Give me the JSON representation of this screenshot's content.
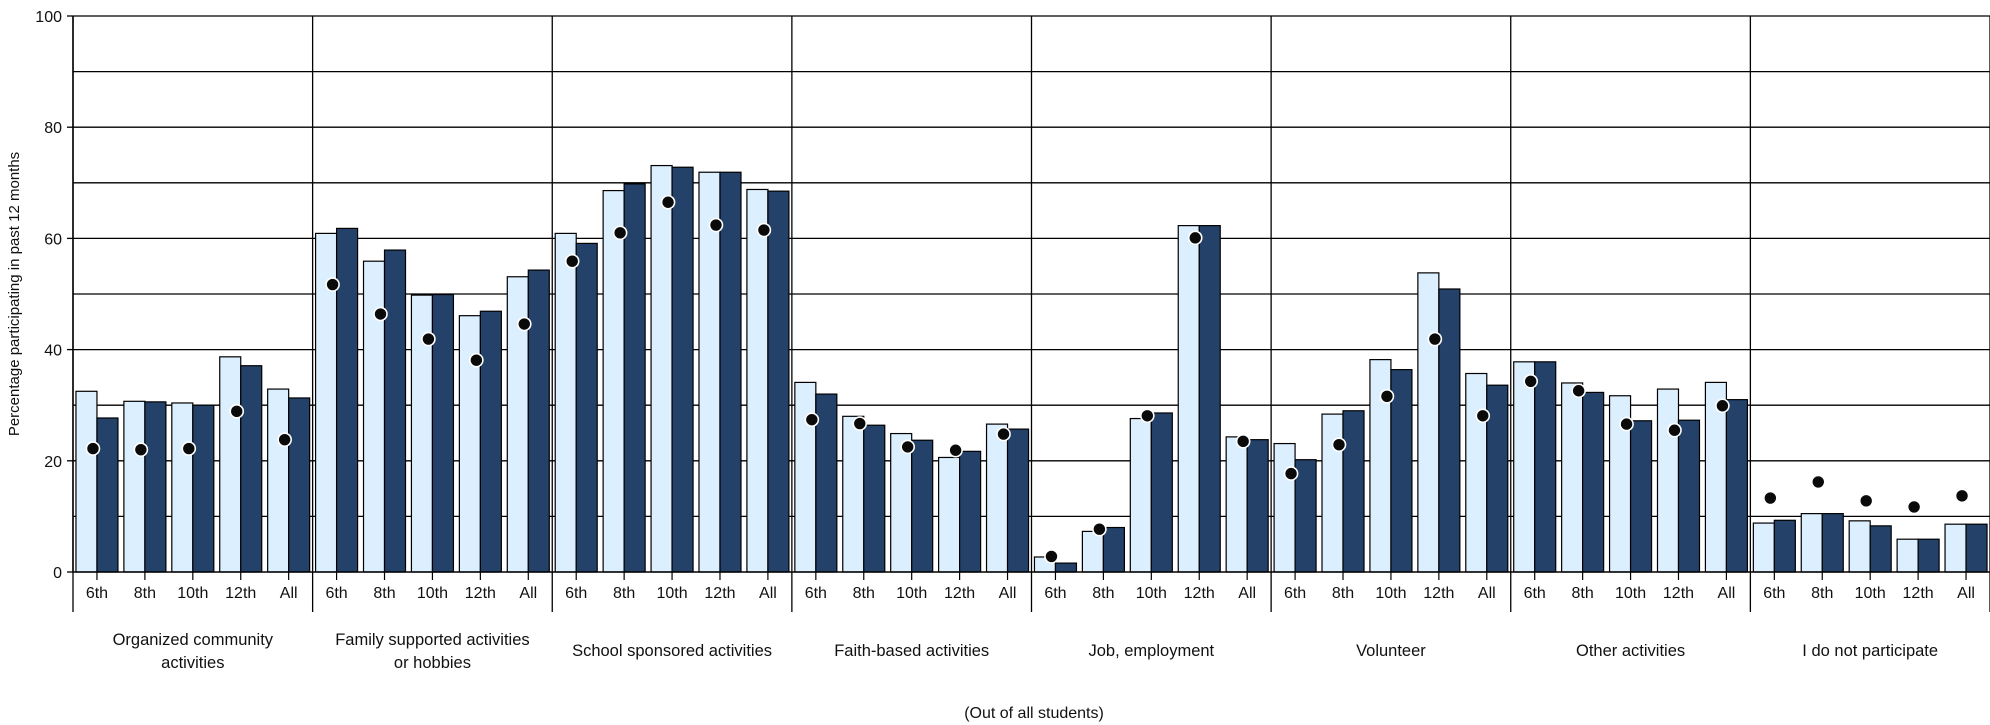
{
  "chart_data": {
    "type": "bar",
    "title": "",
    "ylabel": "Percentage participating in past 12 months",
    "xlabel": "(Out of all students)",
    "ylim": [
      0,
      100
    ],
    "yticks": [
      0,
      20,
      40,
      60,
      80,
      100
    ],
    "grid": true,
    "legend": "none",
    "sub_categories": [
      "6th",
      "8th",
      "10th",
      "12th",
      "All"
    ],
    "groups": [
      {
        "label": "Organized community activities",
        "label_lines": [
          "Organized community",
          "activities"
        ],
        "light": [
          32.5,
          30.7,
          30.4,
          38.7,
          32.9
        ],
        "dark": [
          27.7,
          30.6,
          30.0,
          37.1,
          31.3
        ],
        "dot": [
          22.2,
          22.0,
          22.2,
          28.9,
          23.8
        ]
      },
      {
        "label": "Family supported activities or hobbies",
        "label_lines": [
          "Family supported activities",
          "or hobbies"
        ],
        "light": [
          60.9,
          55.9,
          49.8,
          46.1,
          53.1
        ],
        "dark": [
          61.8,
          57.9,
          49.9,
          46.9,
          54.3
        ],
        "dot": [
          51.7,
          46.4,
          41.9,
          38.1,
          44.6
        ]
      },
      {
        "label": "School sponsored activities",
        "label_lines": [
          "School sponsored activities"
        ],
        "light": [
          60.9,
          68.6,
          73.1,
          71.9,
          68.8
        ],
        "dark": [
          59.1,
          69.8,
          72.8,
          71.9,
          68.5
        ],
        "dot": [
          55.9,
          61.0,
          66.5,
          62.4,
          61.5
        ]
      },
      {
        "label": "Faith-based activities",
        "label_lines": [
          "Faith-based activities"
        ],
        "light": [
          34.1,
          28.0,
          24.9,
          20.6,
          26.6
        ],
        "dark": [
          32.0,
          26.4,
          23.7,
          21.7,
          25.7
        ],
        "dot": [
          27.4,
          26.7,
          22.5,
          21.9,
          24.8
        ]
      },
      {
        "label": "Job, employment",
        "label_lines": [
          "Job, employment"
        ],
        "light": [
          2.7,
          7.3,
          27.6,
          62.3,
          24.3
        ],
        "dark": [
          1.6,
          8.0,
          28.6,
          62.3,
          23.8
        ],
        "dot": [
          2.8,
          7.7,
          28.1,
          60.1,
          23.5
        ]
      },
      {
        "label": "Volunteer",
        "label_lines": [
          "Volunteer"
        ],
        "light": [
          23.1,
          28.4,
          38.2,
          53.8,
          35.7
        ],
        "dark": [
          20.2,
          29.0,
          36.4,
          50.9,
          33.6
        ],
        "dot": [
          17.7,
          22.9,
          31.6,
          41.9,
          28.1
        ]
      },
      {
        "label": "Other activities",
        "label_lines": [
          "Other activities"
        ],
        "light": [
          37.8,
          34.0,
          31.7,
          32.9,
          34.1
        ],
        "dark": [
          37.8,
          32.3,
          27.2,
          27.3,
          31.0
        ],
        "dot": [
          34.3,
          32.6,
          26.6,
          25.5,
          29.9
        ]
      },
      {
        "label": "I do not participate",
        "label_lines": [
          "I do not participate"
        ],
        "light": [
          8.8,
          10.5,
          9.2,
          5.9,
          8.6
        ],
        "dark": [
          9.3,
          10.5,
          8.3,
          5.9,
          8.6
        ],
        "dot": [
          13.3,
          16.2,
          12.8,
          11.7,
          13.7
        ]
      }
    ],
    "colors": {
      "light_fill": "#dcefff",
      "dark_fill": "#24416a",
      "dot_fill": "#0a0a0a",
      "grid": "#000000"
    }
  }
}
